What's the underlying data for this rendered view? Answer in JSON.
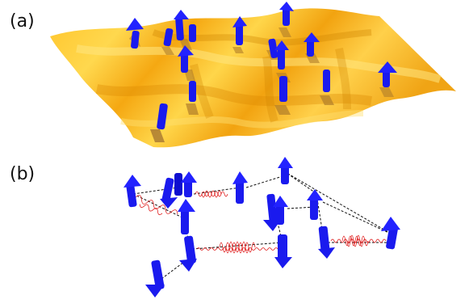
{
  "labels": {
    "a": "(a)",
    "b": "(b)"
  },
  "colors": {
    "spin": "#1a1aee",
    "spin_dark": "#0000a8",
    "shadow": "#b07d2a",
    "surface_light": "#ffd54a",
    "surface_mid": "#ffbf1f",
    "surface_dark": "#d98b00",
    "packet": "#e02020",
    "link": "#111111"
  },
  "icons": [
    "spin-up-arrow",
    "spin-down-arrow",
    "wave-packet",
    "dashed-link"
  ]
}
